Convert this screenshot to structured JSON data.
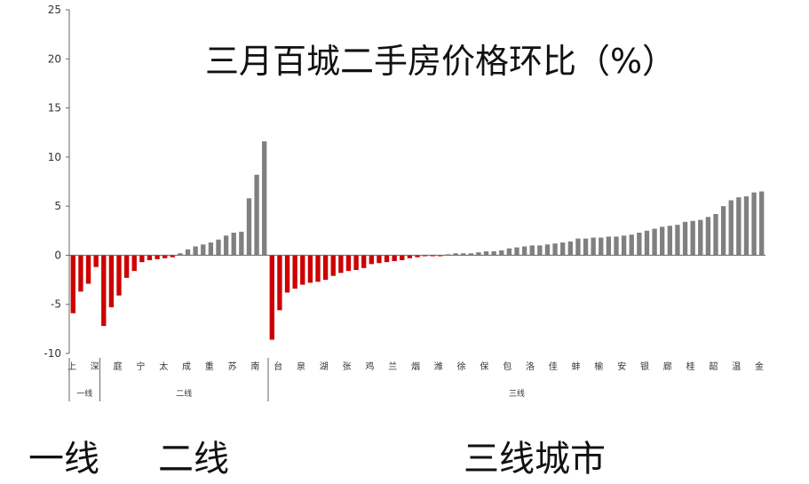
{
  "chart_data": {
    "type": "bar",
    "title": "三月百城二手房价格环比（%）",
    "ylim": [
      -10,
      25
    ],
    "yticks": [
      "25",
      "20",
      "15",
      "10",
      "5",
      "0",
      "-5",
      "-10"
    ],
    "grid": false,
    "positive_color": "#808080",
    "negative_color": "#cc0000",
    "groups": [
      {
        "label": "一线",
        "values": [
          -5.9,
          -3.7,
          -2.9,
          -1.2
        ]
      },
      {
        "label": "二线",
        "values": [
          -7.2,
          -5.3,
          -4.1,
          -2.3,
          -1.6,
          -0.7,
          -0.5,
          -0.4,
          -0.3,
          -0.2,
          0.2,
          0.6,
          0.9,
          1.1,
          1.3,
          1.6,
          2.0,
          2.3,
          2.4,
          5.8,
          8.2,
          11.6
        ]
      },
      {
        "label": "三线",
        "values": [
          -8.6,
          -5.6,
          -3.8,
          -3.4,
          -3.0,
          -2.8,
          -2.7,
          -2.5,
          -2.1,
          -1.8,
          -1.6,
          -1.5,
          -1.3,
          -0.9,
          -0.8,
          -0.7,
          -0.6,
          -0.5,
          -0.3,
          -0.2,
          -0.1,
          -0.1,
          -0.1,
          0.1,
          0.2,
          0.2,
          0.2,
          0.3,
          0.4,
          0.4,
          0.5,
          0.7,
          0.8,
          0.9,
          1.0,
          1.0,
          1.1,
          1.2,
          1.3,
          1.4,
          1.7,
          1.7,
          1.8,
          1.8,
          1.9,
          1.9,
          2.0,
          2.1,
          2.3,
          2.5,
          2.7,
          2.9,
          3.0,
          3.1,
          3.4,
          3.5,
          3.6,
          3.9,
          4.2,
          5.0,
          5.6,
          5.9,
          6.0,
          6.4,
          6.5
        ]
      }
    ],
    "tick_labels": [
      "上",
      "深",
      "庭",
      "宁",
      "太",
      "成",
      "重",
      "苏",
      "南",
      "台",
      "泉",
      "湖",
      "张",
      "鸡",
      "兰",
      "烟",
      "潍",
      "徐",
      "保",
      "包",
      "洛",
      "佳",
      "蚌",
      "榆",
      "安",
      "银",
      "廊",
      "桂",
      "韶",
      "温",
      "金"
    ]
  },
  "bottom_labels": {
    "tier1": "一线",
    "tier2": "二线",
    "tier3": "三线城市"
  }
}
